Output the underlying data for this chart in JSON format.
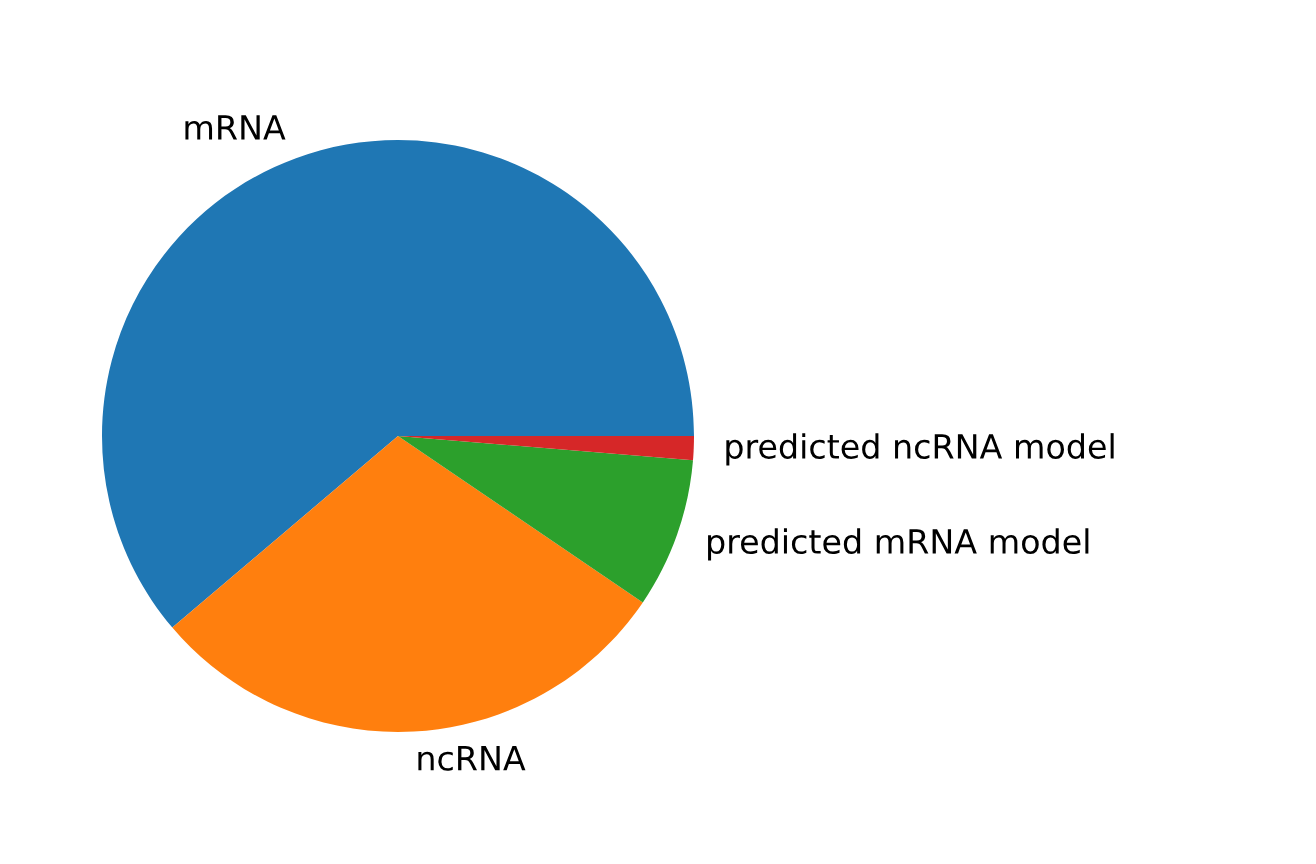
{
  "chart_data": {
    "type": "pie",
    "categories": [
      "mRNA",
      "ncRNA",
      "predicted mRNA model",
      "predicted ncRNA model"
    ],
    "values": [
      61.2,
      29.3,
      8.2,
      1.3
    ],
    "colors": [
      "#1f77b4",
      "#ff7f0e",
      "#2ca02c",
      "#d62728"
    ]
  }
}
